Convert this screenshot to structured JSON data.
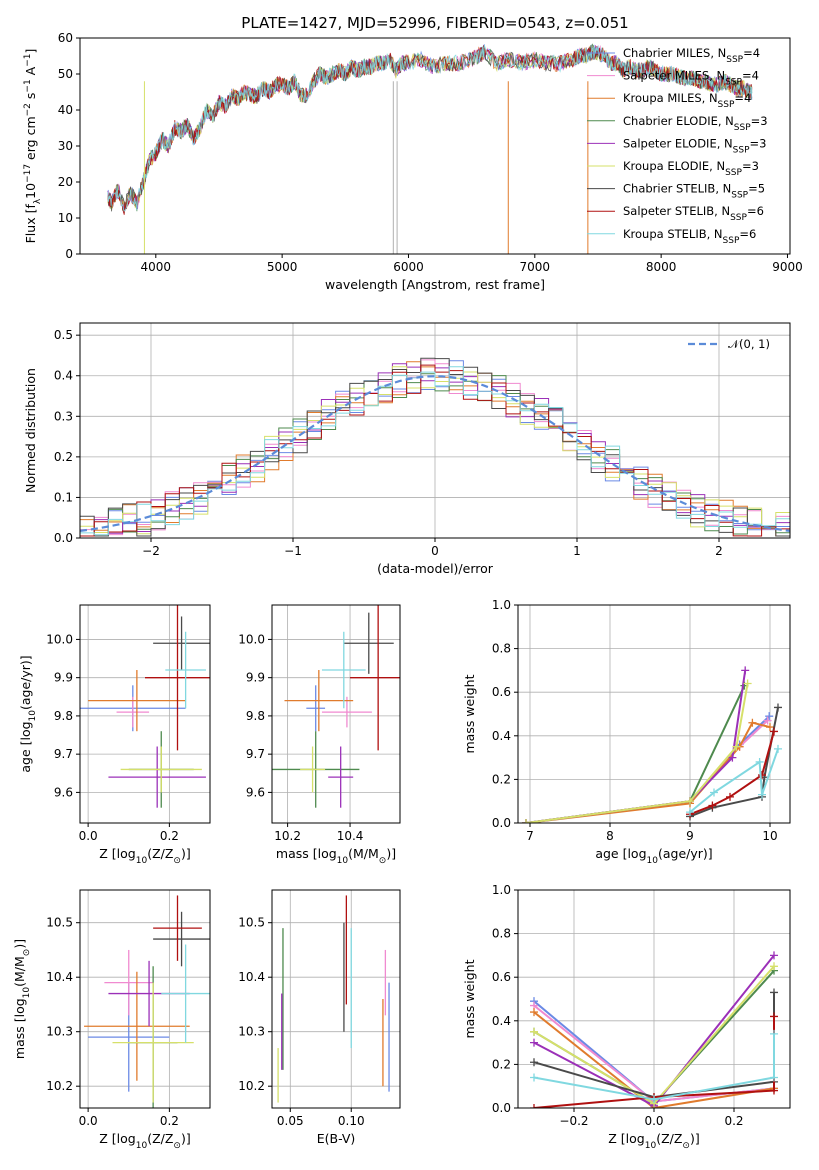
{
  "colors": [
    "#6b8ae5",
    "#f08ad0",
    "#e07b2d",
    "#4e8a4e",
    "#9b30b8",
    "#d6e06a",
    "#4a4a4a",
    "#b01010",
    "#80d8e0"
  ],
  "legend_main": [
    {
      "label": "Chabrier MILES, N",
      "sub": "SSP",
      "tail": "=4"
    },
    {
      "label": "Salpeter MILES, N",
      "sub": "SSP",
      "tail": "=4"
    },
    {
      "label": "Kroupa MILES, N",
      "sub": "SSP",
      "tail": "=4"
    },
    {
      "label": "Chabrier ELODIE, N",
      "sub": "SSP",
      "tail": "=3"
    },
    {
      "label": "Salpeter ELODIE, N",
      "sub": "SSP",
      "tail": "=3"
    },
    {
      "label": "Kroupa ELODIE, N",
      "sub": "SSP",
      "tail": "=3"
    },
    {
      "label": "Chabrier STELIB, N",
      "sub": "SSP",
      "tail": "=5"
    },
    {
      "label": "Salpeter STELIB, N",
      "sub": "SSP",
      "tail": "=6"
    },
    {
      "label": "Kroupa STELIB, N",
      "sub": "SSP",
      "tail": "=6"
    }
  ],
  "chart_data": [
    {
      "type": "line",
      "title": "PLATE=1427, MJD=52996, FIBERID=0543, z=0.051",
      "xlabel": "wavelength [Angstrom, rest frame]",
      "ylabel_parts": [
        "Flux [f",
        "λ",
        "10",
        "−17",
        " erg cm",
        "−2",
        " s",
        "−1",
        " A",
        "−1",
        "]"
      ],
      "xlim": [
        3400,
        9020
      ],
      "ylim": [
        0,
        60
      ],
      "xticks": [
        4000,
        5000,
        6000,
        7000,
        8000,
        9000
      ],
      "yticks": [
        0,
        10,
        20,
        30,
        40,
        50,
        60
      ],
      "spectrum": {
        "x": [
          3620,
          3650,
          3700,
          3750,
          3800,
          3850,
          3900,
          3950,
          4000,
          4050,
          4100,
          4150,
          4200,
          4250,
          4300,
          4350,
          4400,
          4450,
          4500,
          4550,
          4600,
          4650,
          4700,
          4750,
          4800,
          4850,
          4900,
          4950,
          5000,
          5050,
          5100,
          5150,
          5200,
          5250,
          5300,
          5350,
          5400,
          5450,
          5500,
          5550,
          5600,
          5650,
          5700,
          5750,
          5800,
          5850,
          5900,
          5950,
          6000,
          6100,
          6200,
          6300,
          6400,
          6500,
          6550,
          6600,
          6700,
          6800,
          6900,
          7000,
          7100,
          7200,
          7300,
          7350,
          7400,
          7450,
          7500,
          7600,
          7700,
          7800,
          7900,
          8000,
          8100,
          8200,
          8300,
          8400,
          8500,
          8600,
          8700
        ],
        "y": [
          16,
          14,
          18,
          13,
          17,
          14,
          20,
          26,
          28,
          32,
          30,
          35,
          34,
          36,
          32,
          35,
          40,
          38,
          42,
          41,
          44,
          43,
          45,
          44,
          44,
          46,
          45,
          47,
          47,
          46,
          48,
          44,
          44,
          48,
          50,
          49,
          50,
          51,
          50,
          52,
          51,
          52,
          52,
          53,
          53,
          54,
          51,
          53,
          53,
          54,
          52,
          53,
          53,
          54,
          55,
          56,
          53,
          54,
          53,
          54,
          53,
          53,
          54,
          55,
          55,
          56,
          56,
          53,
          51,
          51,
          52,
          50,
          50,
          49,
          48,
          47,
          48,
          46,
          45
        ]
      },
      "spectrum_extra_x": [
        7450,
        7550,
        7650,
        7750,
        7850,
        7950,
        8050,
        8150,
        8250,
        8350,
        8450,
        8550,
        8650,
        8720
      ],
      "spectrum_extra_y": [
        56,
        55,
        53,
        52,
        51,
        51,
        50,
        49,
        49,
        48,
        47,
        47,
        46,
        45
      ],
      "dips": [
        {
          "x": 3910,
          "y": 0
        },
        {
          "x": 5880,
          "y": 0
        },
        {
          "x": 5910,
          "y": 0
        },
        {
          "x": 6790,
          "y": 0
        },
        {
          "x": 7420,
          "y": 0
        }
      ]
    },
    {
      "type": "histogram",
      "xlabel": "(data-model)/error",
      "ylabel": "Normed distribution",
      "xlim": [
        -2.5,
        2.5
      ],
      "ylim": [
        0,
        0.53
      ],
      "xticks": [
        -2,
        -1,
        0,
        1,
        2
      ],
      "yticks": [
        0.0,
        0.1,
        0.2,
        0.3,
        0.4,
        0.5
      ],
      "legend": "𝒩(0, 1)",
      "gaussian_mu": 0,
      "gaussian_sigma": 1,
      "bin_width": 0.1
    },
    {
      "type": "errorbar",
      "xlabel_parts": [
        "Z [log",
        "10",
        "(Z/Z",
        "⊙",
        ")]"
      ],
      "ylabel_parts": [
        "age  [log",
        "10",
        "(age/yr)]"
      ],
      "xlim": [
        -0.02,
        0.3
      ],
      "ylim": [
        9.52,
        10.09
      ],
      "xticks": [
        0.0,
        0.2
      ],
      "yticks": [
        9.6,
        9.7,
        9.8,
        9.9,
        10.0
      ],
      "points": [
        {
          "x": 0.11,
          "y": 9.82,
          "xerr": 0.13,
          "yerr": 0.06
        },
        {
          "x": 0.11,
          "y": 9.81,
          "xerr": 0.04,
          "yerr": 0.04
        },
        {
          "x": 0.12,
          "y": 9.84,
          "xerr": 0.12,
          "yerr": 0.08
        },
        {
          "x": 0.18,
          "y": 9.66,
          "xerr": 0.08,
          "yerr": 0.1
        },
        {
          "x": 0.17,
          "y": 9.64,
          "xerr": 0.12,
          "yerr": 0.08
        },
        {
          "x": 0.18,
          "y": 9.66,
          "xerr": 0.1,
          "yerr": 0.06
        },
        {
          "x": 0.23,
          "y": 9.99,
          "xerr": 0.07,
          "yerr": 0.07
        },
        {
          "x": 0.22,
          "y": 9.9,
          "xerr": 0.08,
          "yerr": 0.19
        },
        {
          "x": 0.24,
          "y": 9.92,
          "xerr": 0.05,
          "yerr": 0.1
        }
      ]
    },
    {
      "type": "errorbar",
      "xlabel_parts": [
        "mass [log",
        "10",
        "(M/M",
        "⊙",
        ")]"
      ],
      "ylabel": "",
      "xlim": [
        10.15,
        10.56
      ],
      "ylim": [
        9.52,
        10.09
      ],
      "xticks": [
        10.2,
        10.4
      ],
      "yticks": [
        9.6,
        9.7,
        9.8,
        9.9,
        10.0
      ],
      "points": [
        {
          "x": 10.29,
          "y": 9.82,
          "xerr": 0.03,
          "yerr": 0.06
        },
        {
          "x": 10.39,
          "y": 9.81,
          "xerr": 0.08,
          "yerr": 0.04
        },
        {
          "x": 10.3,
          "y": 9.84,
          "xerr": 0.11,
          "yerr": 0.08
        },
        {
          "x": 10.29,
          "y": 9.66,
          "xerr": 0.14,
          "yerr": 0.1
        },
        {
          "x": 10.37,
          "y": 9.64,
          "xerr": 0.04,
          "yerr": 0.08
        },
        {
          "x": 10.28,
          "y": 9.66,
          "xerr": 0.04,
          "yerr": 0.06
        },
        {
          "x": 10.46,
          "y": 9.99,
          "xerr": 0.08,
          "yerr": 0.08
        },
        {
          "x": 10.49,
          "y": 9.9,
          "xerr": 0.09,
          "yerr": 0.19
        },
        {
          "x": 10.38,
          "y": 9.92,
          "xerr": 0.07,
          "yerr": 0.1
        }
      ]
    },
    {
      "type": "line",
      "xlabel_parts": [
        "age  [log",
        "10",
        "(age/yr)]"
      ],
      "ylabel": "mass weight",
      "xlim": [
        6.85,
        10.25
      ],
      "ylim": [
        0,
        1.0
      ],
      "xticks": [
        7,
        8,
        9,
        10
      ],
      "yticks": [
        0.0,
        0.2,
        0.4,
        0.6,
        0.8,
        1.0
      ],
      "series": [
        {
          "x": [
            6.95,
            9.0,
            9.62,
            9.99
          ],
          "y": [
            0.0,
            0.1,
            0.36,
            0.49
          ]
        },
        {
          "x": [
            6.95,
            9.0,
            9.62,
            9.97
          ],
          "y": [
            0.0,
            0.1,
            0.35,
            0.47
          ]
        },
        {
          "x": [
            6.95,
            9.0,
            9.62,
            9.78,
            10.0
          ],
          "y": [
            0.0,
            0.09,
            0.35,
            0.46,
            0.44
          ]
        },
        {
          "x": [
            6.95,
            9.0,
            9.68
          ],
          "y": [
            0.0,
            0.1,
            0.63
          ]
        },
        {
          "x": [
            6.95,
            9.0,
            9.53,
            9.69
          ],
          "y": [
            0.0,
            0.1,
            0.3,
            0.7
          ]
        },
        {
          "x": [
            6.95,
            9.0,
            9.58,
            9.72
          ],
          "y": [
            0.0,
            0.1,
            0.35,
            0.64
          ]
        },
        {
          "x": [
            9.0,
            9.28,
            9.9,
            9.93,
            10.1
          ],
          "y": [
            0.03,
            0.07,
            0.12,
            0.21,
            0.53
          ]
        },
        {
          "x": [
            9.0,
            9.28,
            9.5,
            9.9,
            10.05
          ],
          "y": [
            0.04,
            0.08,
            0.12,
            0.22,
            0.42
          ]
        },
        {
          "x": [
            9.0,
            9.3,
            9.87,
            9.9,
            10.1
          ],
          "y": [
            0.05,
            0.14,
            0.28,
            0.13,
            0.34
          ]
        }
      ]
    },
    {
      "type": "errorbar",
      "xlabel_parts": [
        "Z [log",
        "10",
        "(Z/Z",
        "⊙",
        ")]"
      ],
      "ylabel_parts": [
        "mass [log",
        "10",
        "(M/M",
        "⊙",
        ")]"
      ],
      "xlim": [
        -0.02,
        0.3
      ],
      "ylim": [
        10.16,
        10.56
      ],
      "xticks": [
        0.0,
        0.2
      ],
      "yticks": [
        10.2,
        10.3,
        10.4,
        10.5
      ],
      "points": [
        {
          "x": 0.1,
          "y": 10.29,
          "xerr": 0.1,
          "yerr": 0.1
        },
        {
          "x": 0.1,
          "y": 10.39,
          "xerr": 0.06,
          "yerr": 0.06
        },
        {
          "x": 0.12,
          "y": 10.31,
          "xerr": 0.13,
          "yerr": 0.1
        },
        {
          "x": 0.16,
          "y": 10.28,
          "xerr": 0.06,
          "yerr": 0.14
        },
        {
          "x": 0.15,
          "y": 10.37,
          "xerr": 0.1,
          "yerr": 0.06
        },
        {
          "x": 0.16,
          "y": 10.28,
          "xerr": 0.1,
          "yerr": 0.11
        },
        {
          "x": 0.23,
          "y": 10.47,
          "xerr": 0.07,
          "yerr": 0.05
        },
        {
          "x": 0.22,
          "y": 10.49,
          "xerr": 0.06,
          "yerr": 0.06
        },
        {
          "x": 0.24,
          "y": 10.37,
          "xerr": 0.06,
          "yerr": 0.09
        }
      ]
    },
    {
      "type": "errorbar",
      "xlabel": "E(B-V)",
      "ylabel": "",
      "xlim": [
        0.035,
        0.14
      ],
      "ylim": [
        10.16,
        10.56
      ],
      "xticks": [
        0.05,
        0.1
      ],
      "yticks": [
        10.2,
        10.3,
        10.4,
        10.5
      ],
      "points": [
        {
          "x": 0.131,
          "y": 10.29,
          "xerr": 0,
          "yerr": 0.1
        },
        {
          "x": 0.128,
          "y": 10.39,
          "xerr": 0,
          "yerr": 0.06
        },
        {
          "x": 0.126,
          "y": 10.28,
          "xerr": 0,
          "yerr": 0.08
        },
        {
          "x": 0.044,
          "y": 10.36,
          "xerr": 0,
          "yerr": 0.13
        },
        {
          "x": 0.043,
          "y": 10.3,
          "xerr": 0,
          "yerr": 0.07
        },
        {
          "x": 0.04,
          "y": 10.22,
          "xerr": 0,
          "yerr": 0.05
        },
        {
          "x": 0.094,
          "y": 10.4,
          "xerr": 0,
          "yerr": 0.1
        },
        {
          "x": 0.096,
          "y": 10.45,
          "xerr": 0,
          "yerr": 0.1
        },
        {
          "x": 0.1,
          "y": 10.38,
          "xerr": 0,
          "yerr": 0.11
        }
      ]
    },
    {
      "type": "line",
      "xlabel_parts": [
        "Z [log",
        "10",
        "(Z/Z",
        "⊙",
        ")]"
      ],
      "ylabel": "mass weight",
      "xlim": [
        -0.34,
        0.34
      ],
      "ylim": [
        0,
        1.0
      ],
      "xticks": [
        -0.2,
        0.0,
        0.2
      ],
      "yticks": [
        0.0,
        0.2,
        0.4,
        0.6,
        0.8,
        1.0
      ],
      "series": [
        {
          "x": [
            -0.3,
            0.0,
            0.3
          ],
          "y": [
            0.49,
            0.03,
            0.09
          ]
        },
        {
          "x": [
            -0.3,
            0.0,
            0.3
          ],
          "y": [
            0.47,
            0.03,
            0.09
          ]
        },
        {
          "x": [
            -0.3,
            0.0,
            0.3
          ],
          "y": [
            0.44,
            0.0,
            0.09
          ]
        },
        {
          "x": [
            -0.3,
            0.0,
            0.3
          ],
          "y": [
            0.35,
            0.02,
            0.63
          ]
        },
        {
          "x": [
            -0.3,
            0.0,
            0.3
          ],
          "y": [
            0.3,
            0.01,
            0.7
          ]
        },
        {
          "x": [
            -0.3,
            0.0,
            0.3
          ],
          "y": [
            0.35,
            0.02,
            0.65
          ]
        },
        {
          "x": [
            -0.3,
            0.0,
            0.3,
            0.3
          ],
          "y": [
            0.21,
            0.05,
            0.12,
            0.53
          ]
        },
        {
          "x": [
            -0.3,
            0.0,
            0.3,
            0.3
          ],
          "y": [
            0.0,
            0.05,
            0.08,
            0.42
          ]
        },
        {
          "x": [
            -0.3,
            0.0,
            0.3,
            0.3
          ],
          "y": [
            0.14,
            0.04,
            0.14,
            0.34
          ]
        }
      ]
    }
  ]
}
